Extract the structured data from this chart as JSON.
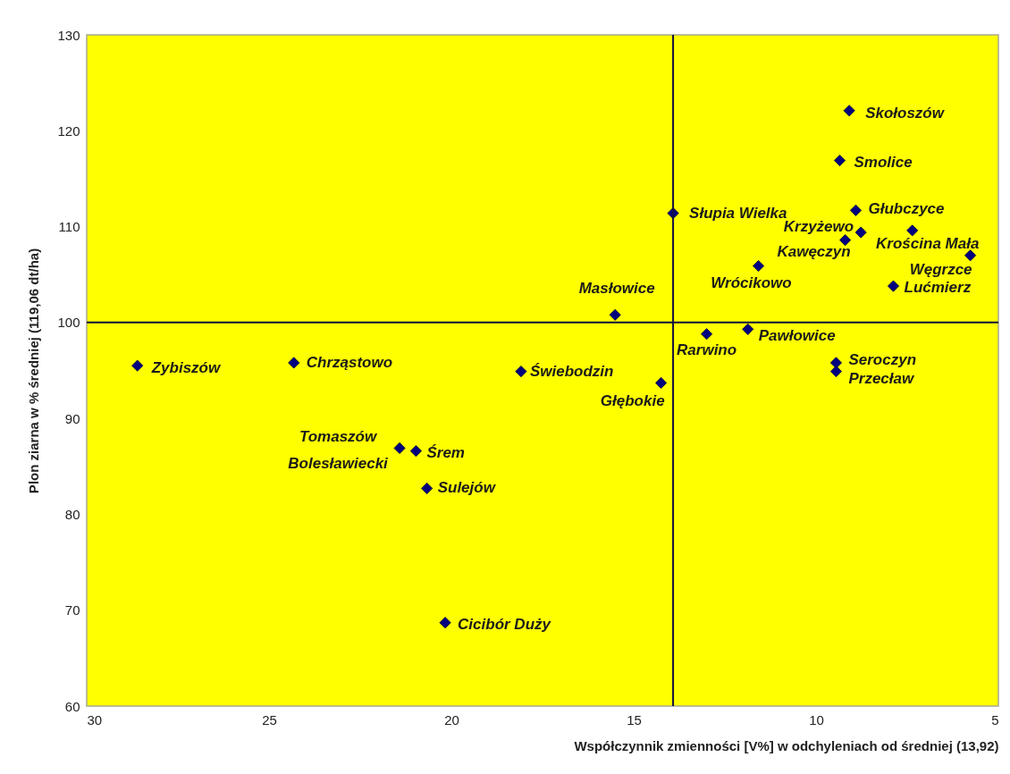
{
  "chart_data": {
    "type": "scatter",
    "xlabel": "Współczynnik zmienności [V%] w odchyleniach od średniej (13,92)",
    "ylabel": "Plon ziarna w % średniej (119,06 dt/ha)",
    "x": [
      28.61,
      24.32,
      18.09,
      21.42,
      20.97,
      20.67,
      20.17,
      14.25,
      15.51,
      13.92,
      13.0,
      11.87,
      11.58,
      9.2,
      8.77,
      8.91,
      7.36,
      5.77,
      7.88,
      9.09,
      9.35,
      9.45,
      9.45
    ],
    "values": [
      95.5,
      95.8,
      94.9,
      86.9,
      86.6,
      82.7,
      68.7,
      93.7,
      100.8,
      111.4,
      98.8,
      99.3,
      105.9,
      108.6,
      109.4,
      111.7,
      109.6,
      107.0,
      103.8,
      122.1,
      116.9,
      95.8,
      94.9
    ],
    "color": "#00007f",
    "marker": "diamond",
    "xlim": [
      30,
      5
    ],
    "ylim": [
      60,
      130
    ],
    "xticks": [
      30,
      25,
      20,
      15,
      10,
      5
    ],
    "yticks": [
      60,
      70,
      80,
      90,
      100,
      110,
      120,
      130
    ],
    "ref_lines": [
      {
        "axis": "x",
        "value": 13.92,
        "color": "#101040"
      },
      {
        "axis": "y",
        "value": 100,
        "color": "#101040"
      }
    ],
    "annotations": [
      {
        "text": "Zybiszów",
        "x": 28.61,
        "y": 95.5
      },
      {
        "text": "Chrząstowo",
        "x": 24.32,
        "y": 95.8
      },
      {
        "text": "Świebodzin",
        "x": 18.09,
        "y": 94.9
      },
      {
        "text": "Tomaszów Bolesławiecki",
        "x": 21.42,
        "y": 86.9
      },
      {
        "text": "Śrem",
        "x": 20.97,
        "y": 86.6
      },
      {
        "text": "Sulejów",
        "x": 20.67,
        "y": 82.7
      },
      {
        "text": "Cicibór Duży",
        "x": 20.17,
        "y": 68.7
      },
      {
        "text": "Głębokie",
        "x": 14.25,
        "y": 93.7
      },
      {
        "text": "Masłowice",
        "x": 15.51,
        "y": 100.8
      },
      {
        "text": "Słupia Wielka",
        "x": 13.92,
        "y": 111.4
      },
      {
        "text": "Rarwino",
        "x": 13.0,
        "y": 98.8
      },
      {
        "text": "Pawłowice",
        "x": 11.87,
        "y": 99.3
      },
      {
        "text": "Wrócikowo",
        "x": 11.58,
        "y": 105.9
      },
      {
        "text": "Kawęczyn",
        "x": 9.2,
        "y": 108.6
      },
      {
        "text": "Krzyżewo",
        "x": 8.77,
        "y": 109.4
      },
      {
        "text": "Głubczyce",
        "x": 8.91,
        "y": 111.7
      },
      {
        "text": "Krościna Mała",
        "x": 7.36,
        "y": 109.6
      },
      {
        "text": "Węgrzce",
        "x": 5.77,
        "y": 107.0
      },
      {
        "text": "Lućmierz",
        "x": 7.88,
        "y": 103.8
      },
      {
        "text": "Skołoszów",
        "x": 9.09,
        "y": 122.1
      },
      {
        "text": "Smolice",
        "x": 9.35,
        "y": 116.9
      },
      {
        "text": "Seroczyn",
        "x": 9.45,
        "y": 95.8
      },
      {
        "text": "Przecław",
        "x": 9.45,
        "y": 94.9
      }
    ]
  }
}
